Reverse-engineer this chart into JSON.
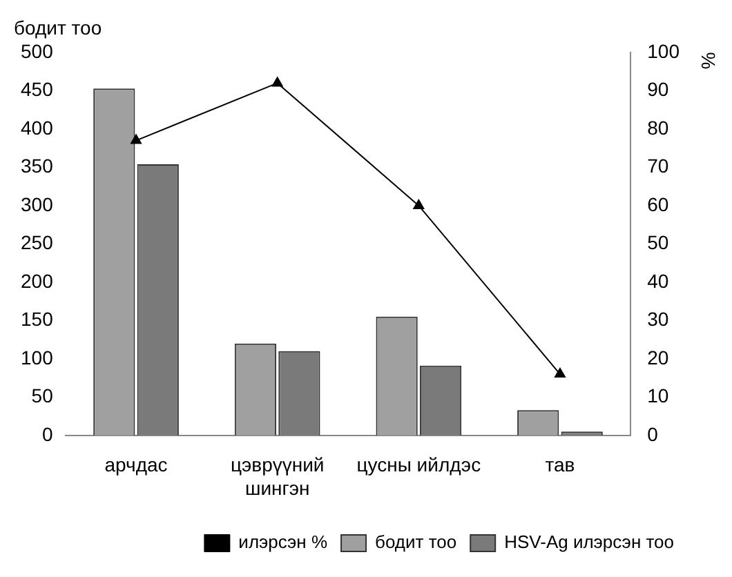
{
  "chart_data": {
    "type": "bar",
    "ylabel": "бодит тоо",
    "y2label": "%",
    "categories": [
      "арчдас",
      "цэврүүний шингэн",
      "цусны ийлдэс",
      "тав"
    ],
    "series": [
      {
        "name": "бодит тоо",
        "color": "#a0a0a0",
        "values": [
          453,
          120,
          155,
          33
        ]
      },
      {
        "name": "HSV-Ag илэрсэн тоо",
        "color": "#7a7a7a",
        "values": [
          354,
          110,
          91,
          5
        ]
      },
      {
        "name": "илэрсэн %",
        "type": "line",
        "axis": "y2",
        "color": "#000000",
        "marker": "triangle",
        "values": [
          77,
          92,
          60,
          16
        ]
      }
    ],
    "ylim": [
      0,
      500
    ],
    "yticks": [
      0,
      50,
      100,
      150,
      200,
      250,
      300,
      350,
      400,
      450,
      500
    ],
    "y2lim": [
      0,
      100
    ],
    "y2ticks": [
      0,
      10,
      20,
      30,
      40,
      50,
      60,
      70,
      80,
      90,
      100
    ],
    "grid": false,
    "legend": "bottom"
  }
}
